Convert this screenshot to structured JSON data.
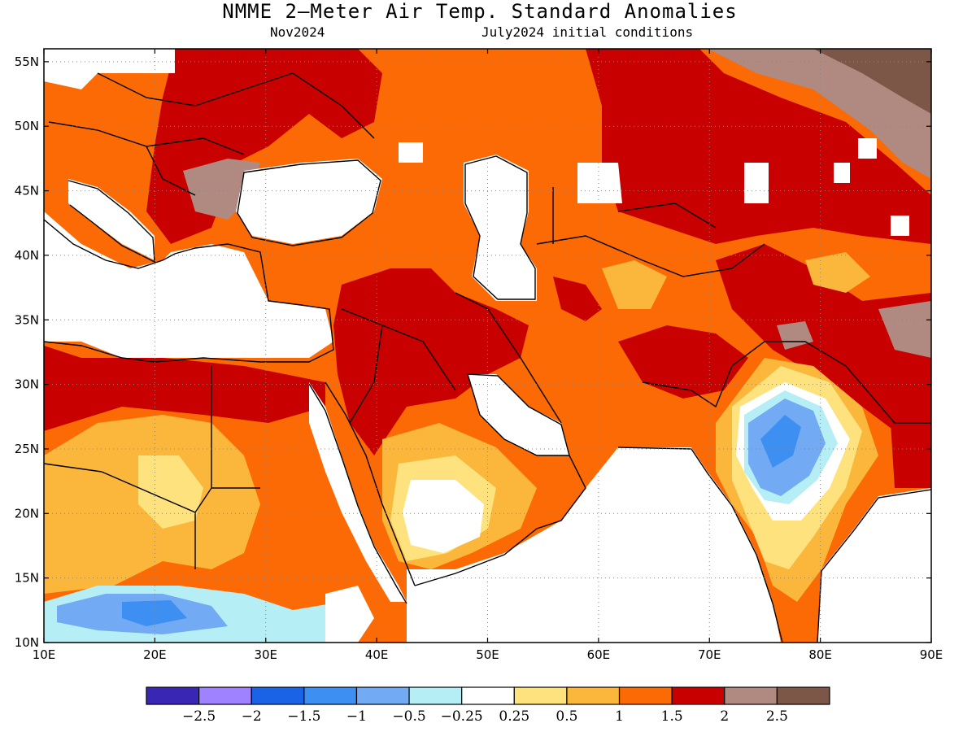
{
  "title": "NMME 2–Meter Air Temp. Standard Anomalies",
  "forecast_month": "Nov2024",
  "initial_conditions": "July2024 initial conditions",
  "map": {
    "lon_labels": [
      "10E",
      "20E",
      "30E",
      "40E",
      "50E",
      "60E",
      "70E",
      "80E",
      "90E"
    ],
    "lat_labels": [
      "10N",
      "15N",
      "20N",
      "25N",
      "30N",
      "35N",
      "40N",
      "45N",
      "50N",
      "55N"
    ],
    "lon_range": [
      10,
      90
    ],
    "lat_range": [
      10,
      56
    ],
    "grid": "dotted"
  },
  "legend": {
    "bins": [
      {
        "color": "#3a26b4"
      },
      {
        "color": "#9f82ff"
      },
      {
        "color": "#1a63e6"
      },
      {
        "color": "#3e8ff2"
      },
      {
        "color": "#72abf3"
      },
      {
        "color": "#b6eef6"
      },
      {
        "color": "#ffffff"
      },
      {
        "color": "#fde27e"
      },
      {
        "color": "#fbb63c"
      },
      {
        "color": "#fb6a04"
      },
      {
        "color": "#c80000"
      },
      {
        "color": "#b08a80"
      },
      {
        "color": "#7c5647"
      }
    ],
    "tick_labels": [
      "−2.5",
      "−2",
      "−1.5",
      "−1",
      "−0.5",
      "−0.25",
      "0.25",
      "0.5",
      "1",
      "1.5",
      "2",
      "2.5"
    ]
  },
  "colors": {
    "land_blank": "#ffffff",
    "coastline": "#000000"
  }
}
